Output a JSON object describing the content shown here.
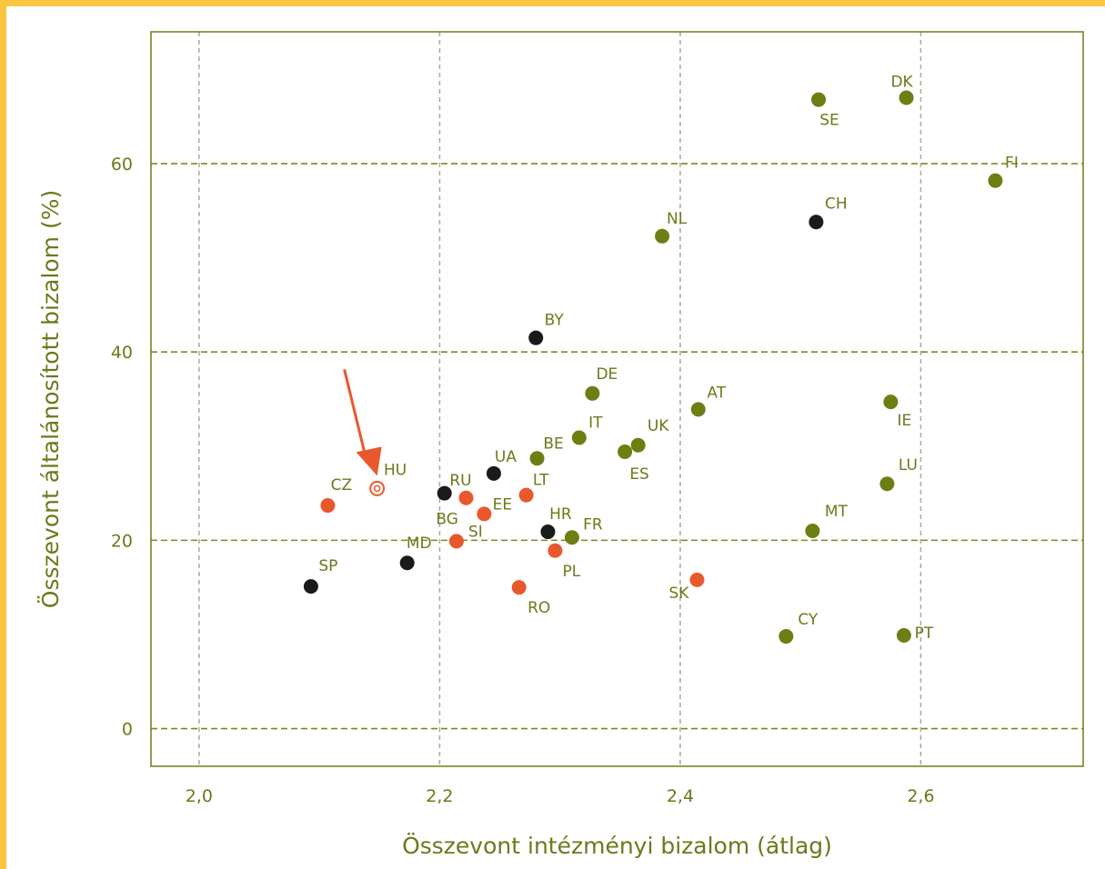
{
  "chart_data": {
    "type": "scatter",
    "title": "",
    "xlabel": "Összevont intézményi bizalom (átlag)",
    "ylabel": "Összevont általánosított bizalom (%)",
    "xlim": [
      1.96,
      2.735
    ],
    "ylim": [
      -4,
      74
    ],
    "x_ticks": [
      2.0,
      2.2,
      2.4,
      2.6
    ],
    "x_tick_labels": [
      "2,0",
      "2,2",
      "2,4",
      "2,6"
    ],
    "y_ticks": [
      0,
      20,
      40,
      60
    ],
    "y_tick_labels": [
      "0",
      "20",
      "40",
      "60"
    ],
    "grid": true,
    "legend": "none",
    "colors": {
      "green": "#6b7f12",
      "black": "#1a1a1a",
      "orange": "#e9582c",
      "frame": "#f9c642",
      "axis": "#6b7a1a",
      "grid_x": "#b5ab96",
      "grid_y": "#7d8a18"
    },
    "highlight_arrow": {
      "target": "HU",
      "color": "#e9582c"
    },
    "points": [
      {
        "label": "DK",
        "x": 2.588,
        "y": 67.0,
        "group": "green"
      },
      {
        "label": "SE",
        "x": 2.515,
        "y": 66.8,
        "group": "green"
      },
      {
        "label": "FI",
        "x": 2.662,
        "y": 58.2,
        "group": "green"
      },
      {
        "label": "CH",
        "x": 2.513,
        "y": 53.8,
        "group": "black"
      },
      {
        "label": "NL",
        "x": 2.385,
        "y": 52.3,
        "group": "green"
      },
      {
        "label": "BY",
        "x": 2.28,
        "y": 41.5,
        "group": "black"
      },
      {
        "label": "DE",
        "x": 2.327,
        "y": 35.6,
        "group": "green"
      },
      {
        "label": "AT",
        "x": 2.415,
        "y": 33.9,
        "group": "green"
      },
      {
        "label": "IE",
        "x": 2.575,
        "y": 34.7,
        "group": "green"
      },
      {
        "label": "IT",
        "x": 2.316,
        "y": 30.9,
        "group": "green"
      },
      {
        "label": "UK",
        "x": 2.365,
        "y": 30.1,
        "group": "green"
      },
      {
        "label": "ES",
        "x": 2.354,
        "y": 29.4,
        "group": "green"
      },
      {
        "label": "BE",
        "x": 2.281,
        "y": 28.7,
        "group": "green"
      },
      {
        "label": "UA",
        "x": 2.245,
        "y": 27.1,
        "group": "black"
      },
      {
        "label": "LU",
        "x": 2.572,
        "y": 26.0,
        "group": "green"
      },
      {
        "label": "HU",
        "x": 2.148,
        "y": 25.5,
        "group": "orange",
        "highlight": true
      },
      {
        "label": "RU",
        "x": 2.222,
        "y": 24.5,
        "group": "orange"
      },
      {
        "label": "LT",
        "x": 2.272,
        "y": 24.8,
        "group": "orange"
      },
      {
        "label": "CZ",
        "x": 2.107,
        "y": 23.7,
        "group": "orange"
      },
      {
        "label": "BG",
        "x": 2.204,
        "y": 25.0,
        "group": "black"
      },
      {
        "label": "EE",
        "x": 2.237,
        "y": 22.8,
        "group": "orange"
      },
      {
        "label": "MT",
        "x": 2.51,
        "y": 21.0,
        "group": "green"
      },
      {
        "label": "HR",
        "x": 2.29,
        "y": 20.9,
        "group": "black"
      },
      {
        "label": "FR",
        "x": 2.31,
        "y": 20.3,
        "group": "green"
      },
      {
        "label": "SI",
        "x": 2.214,
        "y": 19.9,
        "group": "orange"
      },
      {
        "label": "PL",
        "x": 2.296,
        "y": 18.9,
        "group": "orange"
      },
      {
        "label": "MD",
        "x": 2.173,
        "y": 17.6,
        "group": "black"
      },
      {
        "label": "SK",
        "x": 2.414,
        "y": 15.8,
        "group": "orange"
      },
      {
        "label": "SP",
        "x": 2.093,
        "y": 15.1,
        "group": "black"
      },
      {
        "label": "RO",
        "x": 2.266,
        "y": 15.0,
        "group": "orange"
      },
      {
        "label": "CY",
        "x": 2.488,
        "y": 9.8,
        "group": "green"
      },
      {
        "label": "PT",
        "x": 2.586,
        "y": 9.9,
        "group": "green"
      }
    ]
  }
}
